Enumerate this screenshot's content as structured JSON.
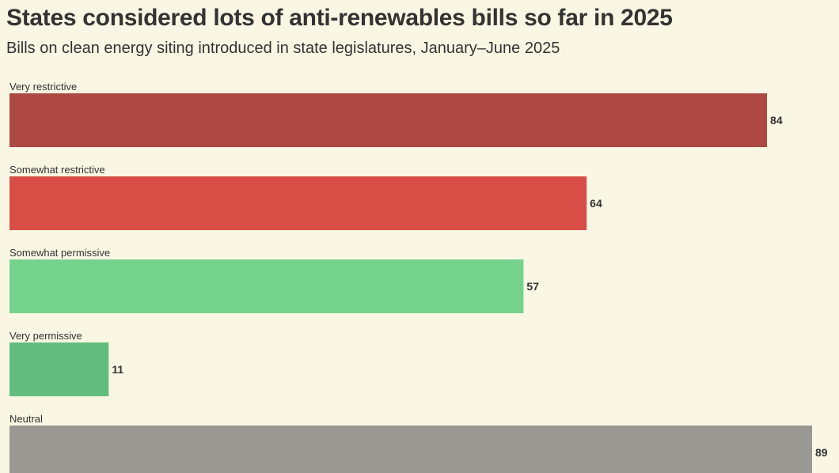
{
  "chart_data": {
    "type": "bar",
    "orientation": "horizontal",
    "title": "States considered lots of anti-renewables bills so far in 2025",
    "subtitle": "Bills on clean energy siting introduced in state legislatures, January–June 2025",
    "xlabel": "",
    "ylabel": "",
    "xlim": [
      0,
      89
    ],
    "grid": false,
    "legend": "none",
    "categories": [
      "Very restrictive",
      "Somewhat restrictive",
      "Somewhat permissive",
      "Very permissive",
      "Neutral"
    ],
    "values": [
      84,
      64,
      57,
      11,
      89
    ],
    "colors": [
      "#ae4843",
      "#d94d47",
      "#74d28d",
      "#62bd7e",
      "#9a9893"
    ]
  }
}
